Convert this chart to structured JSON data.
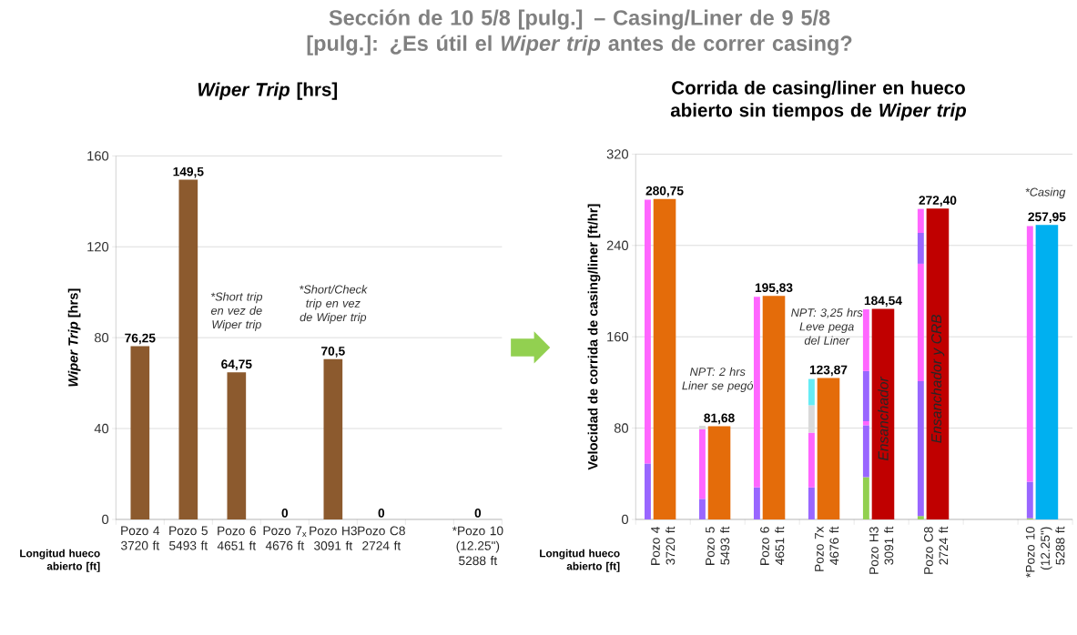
{
  "chart_data": [
    {
      "type": "bar",
      "title": "Sección de 10 5/8 [pulg.] – Casing/Liner de 9 5/8 [pulg.]: ¿Es útil el *Wiper trip* antes de correr casing?",
      "subtitle": "*Wiper Trip* [hrs]",
      "ylabel": "*Wiper Trip* [hrs]",
      "categories": [
        "Pozo 4 3720 ft",
        "Pozo 5 5493 ft",
        "Pozo 6 4651 ft",
        "Pozo 7$_{x}$ 4676 ft",
        "Pozo H3 3091 ft",
        "Pozo C8 2724 ft",
        null,
        "*Pozo 10 (12.25\") 5288 ft"
      ],
      "series": [
        {
          "color": "#8c5a2e",
          "values": [
            76.25,
            149.5,
            64.75,
            0,
            70.5,
            0,
            null,
            0
          ],
          "value_labels": [
            "76,25",
            "149,5",
            "64,75",
            "0",
            "70,5",
            "0",
            null,
            "0"
          ]
        }
      ],
      "ylim": [
        0,
        160
      ],
      "yticks": [
        0,
        40,
        80,
        120,
        160
      ],
      "grid": "y",
      "annotations": [
        "Longitud hueco abierto [ft]",
        "*Short trip en vez de Wiper trip",
        "*Short/Check trip en vez de Wiper trip"
      ]
    },
    {
      "type": "bar",
      "title": "Corrida de casing/liner en hueco abierto sin tiempos de *Wiper trip*",
      "ylabel": "Velocidad de corrida de casing/liner [ft/hr]",
      "categories": [
        "Pozo 4 3720 ft",
        "Pozo 5 5493 ft",
        "Pozo 6 4651 ft",
        "Pozo 7x 4676 ft",
        "Pozo H3 3091 ft",
        "Pozo C8 2724 ft",
        null,
        "*Pozo 10 (12.25\") 5288 ft"
      ],
      "series": [
        {
          "values": [
            49,
            18,
            28,
            28,
            37,
            3,
            null,
            1
          ],
          "base": [
            0,
            0,
            0,
            0,
            0,
            0,
            null,
            0
          ],
          "colors": [
            "#9966ff",
            "#9966ff",
            "#9966ff",
            "#9966ff",
            "#92d050",
            "#92d050",
            null,
            "#92d050"
          ]
        },
        {
          "values": [
            231,
            61,
            167,
            48,
            45.5,
            118,
            null,
            32
          ],
          "base": [
            49,
            18,
            28,
            28,
            37,
            3,
            null,
            1
          ],
          "colors": [
            "#ff66ff",
            "#ff66ff",
            "#ff66ff",
            "#ff66ff",
            "#9966ff",
            "#9966ff",
            null,
            "#9966ff"
          ]
        },
        {
          "values": [
            null,
            3,
            null,
            24,
            3.5,
            103,
            null,
            224
          ],
          "base": [
            null,
            79,
            null,
            76,
            82.5,
            121,
            null,
            33
          ],
          "colors": [
            null,
            "#d9d9d9",
            null,
            "#d9d9d9",
            "#ff66ff",
            "#ff66ff",
            null,
            "#ff66ff"
          ]
        },
        {
          "values": [
            null,
            null,
            null,
            23,
            44,
            27,
            null,
            null
          ],
          "base": [
            null,
            null,
            null,
            100,
            86,
            224,
            null,
            null
          ],
          "colors": [
            null,
            null,
            null,
            "#66ecf5",
            "#9966ff",
            "#9966ff",
            null,
            null
          ]
        },
        {
          "values": [
            null,
            null,
            null,
            null,
            54,
            21,
            null,
            null
          ],
          "base": [
            null,
            null,
            null,
            null,
            130,
            251,
            null,
            null
          ],
          "colors": [
            null,
            null,
            null,
            null,
            "#ff66ff",
            "#ff66ff",
            null,
            null
          ]
        },
        {
          "values": [
            280.75,
            81.68,
            195.83,
            123.87,
            184.54,
            272.4,
            null,
            257.95
          ],
          "colors": [
            "#e46c0a",
            "#e46c0a",
            "#e46c0a",
            "#e46c0a",
            "#c00000",
            "#c00000",
            null,
            "#00b0f0"
          ],
          "value_labels": [
            "280,75",
            "81,68",
            "195,83",
            "123,87",
            "184,54",
            "272,40",
            null,
            "257,95"
          ]
        }
      ],
      "ylim": [
        0,
        320
      ],
      "yticks": [
        0,
        80,
        160,
        240,
        320
      ],
      "grid": "y",
      "annotations": [
        "Longitud hueco abierto [ft]",
        "NPT: 2 hrs Liner se pegó",
        "NPT: 3,25 hrs Leve pega del Liner",
        "Ensanchador",
        "Ensanchador y CRB",
        "*Casing"
      ]
    }
  ]
}
